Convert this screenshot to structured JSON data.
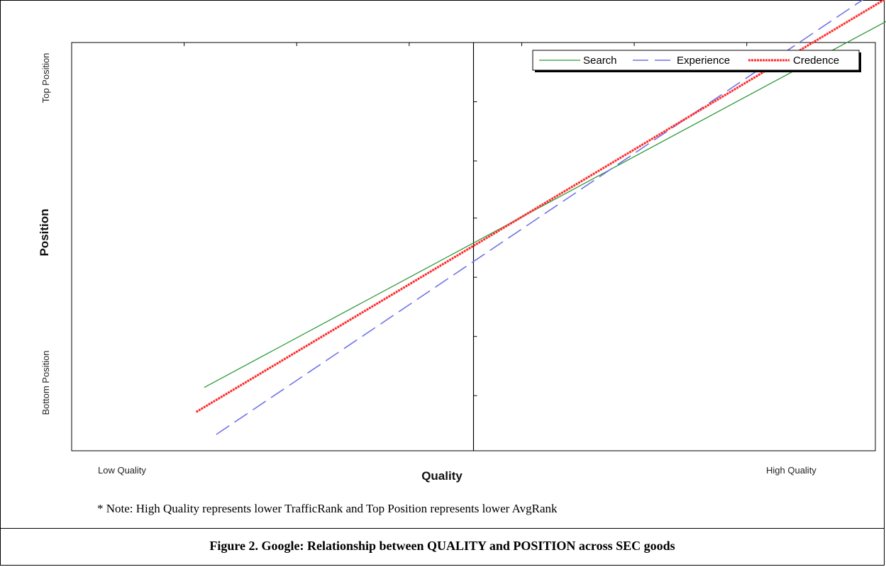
{
  "note": "* Note: High Quality represents lower TrafficRank and Top Position represents lower AvgRank",
  "caption": "Figure 2. Google: Relationship between QUALITY and POSITION across SEC goods",
  "chart_data": {
    "type": "line",
    "title": "",
    "xlabel": "Quality",
    "ylabel": "Position",
    "x_tick_labels": [
      "Low Quality",
      "High Quality"
    ],
    "y_tick_labels": [
      "Bottom Position",
      "Top Position"
    ],
    "xlim": [
      -1,
      1
    ],
    "ylim": [
      -1,
      1
    ],
    "grid": false,
    "legend_position": "top-right",
    "series": [
      {
        "name": "Search",
        "color": "#2e9a3a",
        "dash": "solid",
        "x": [
          -0.67,
          1.09
        ],
        "y": [
          -0.69,
          1.17
        ]
      },
      {
        "name": "Experience",
        "color": "#6f74e8",
        "dash": "dashed",
        "x": [
          -0.64,
          1.09
        ],
        "y": [
          -0.92,
          1.37
        ]
      },
      {
        "name": "Credence",
        "color": "#ff2a2a",
        "dash": "dotted-thick",
        "x": [
          -0.69,
          1.09
        ],
        "y": [
          -0.81,
          1.29
        ]
      }
    ]
  }
}
